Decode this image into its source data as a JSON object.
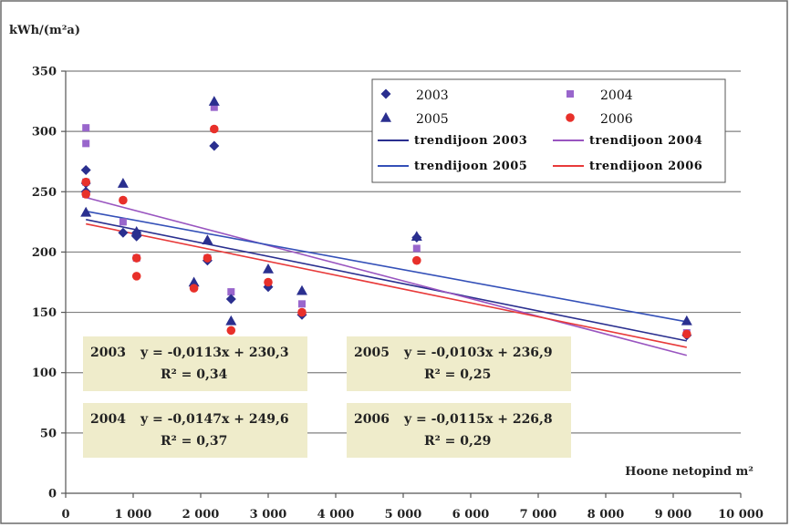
{
  "chart_data": {
    "type": "scatter",
    "ylabel": "kWh/(m²a)",
    "xlabel": "Hoone netopind m²",
    "xlim": [
      0,
      10000
    ],
    "ylim": [
      0,
      350
    ],
    "x_ticks": [
      0,
      1000,
      2000,
      3000,
      4000,
      5000,
      6000,
      7000,
      8000,
      9000,
      10000
    ],
    "x_tick_labels": [
      "0",
      "1 000",
      "2 000",
      "3 000",
      "4 000",
      "5 000",
      "6 000",
      "7 000",
      "8 000",
      "9 000",
      "10 000"
    ],
    "y_ticks": [
      0,
      50,
      100,
      150,
      200,
      250,
      300,
      350
    ],
    "y_tick_labels": [
      "0",
      "50",
      "100",
      "150",
      "200",
      "250",
      "300",
      "350"
    ],
    "grid": true,
    "legend_position": "top-right",
    "series": [
      {
        "name": "2003",
        "marker": "diamond",
        "color": "#2a2f8f",
        "points": [
          [
            300,
            268
          ],
          [
            300,
            257
          ],
          [
            300,
            250
          ],
          [
            850,
            216
          ],
          [
            1050,
            213
          ],
          [
            1050,
            216
          ],
          [
            2100,
            193
          ],
          [
            2200,
            288
          ],
          [
            2450,
            161
          ],
          [
            3000,
            171
          ],
          [
            3500,
            148
          ],
          [
            5200,
            212
          ],
          [
            9200,
            131
          ]
        ]
      },
      {
        "name": "2004",
        "marker": "square",
        "color": "#9966cc",
        "points": [
          [
            300,
            303
          ],
          [
            300,
            290
          ],
          [
            300,
            258
          ],
          [
            300,
            248
          ],
          [
            850,
            225
          ],
          [
            1050,
            195
          ],
          [
            2100,
            195
          ],
          [
            2200,
            320
          ],
          [
            2450,
            167
          ],
          [
            3000,
            174
          ],
          [
            3500,
            157
          ],
          [
            5200,
            203
          ],
          [
            9200,
            133
          ]
        ]
      },
      {
        "name": "2005",
        "marker": "triangle",
        "color": "#2a2f8f",
        "points": [
          [
            300,
            233
          ],
          [
            850,
            257
          ],
          [
            1050,
            217
          ],
          [
            1900,
            175
          ],
          [
            2100,
            210
          ],
          [
            2200,
            325
          ],
          [
            2450,
            143
          ],
          [
            3000,
            186
          ],
          [
            3500,
            168
          ],
          [
            5200,
            213
          ],
          [
            9200,
            143
          ]
        ]
      },
      {
        "name": "2006",
        "marker": "circle",
        "color": "#e8302a",
        "points": [
          [
            300,
            258
          ],
          [
            300,
            248
          ],
          [
            850,
            243
          ],
          [
            1050,
            195
          ],
          [
            1050,
            180
          ],
          [
            1900,
            170
          ],
          [
            2100,
            195
          ],
          [
            2200,
            302
          ],
          [
            2450,
            135
          ],
          [
            3000,
            175
          ],
          [
            3500,
            150
          ],
          [
            5200,
            193
          ],
          [
            9200,
            132
          ]
        ]
      }
    ],
    "trendlines": [
      {
        "name": "trendijoon 2003",
        "slope": -0.0113,
        "intercept": 230.3,
        "color": "#2a2f8f"
      },
      {
        "name": "trendijoon 2004",
        "slope": -0.0147,
        "intercept": 249.6,
        "color": "#9955c0"
      },
      {
        "name": "trendijoon 2005",
        "slope": -0.0103,
        "intercept": 236.9,
        "color": "#3450b8"
      },
      {
        "name": "trendijoon 2006",
        "slope": -0.0115,
        "intercept": 226.8,
        "color": "#e83a3a"
      }
    ],
    "equations": [
      {
        "year": "2003",
        "eq": "y = -0,0113x + 230,3",
        "r2": "R² = 0,34"
      },
      {
        "year": "2005",
        "eq": "y = -0,0103x + 236,9",
        "r2": "R² = 0,25"
      },
      {
        "year": "2004",
        "eq": "y = -0,0147x + 249,6",
        "r2": "R² = 0,37"
      },
      {
        "year": "2006",
        "eq": "y = -0,0115x + 226,8",
        "r2": "R² = 0,29"
      }
    ]
  }
}
